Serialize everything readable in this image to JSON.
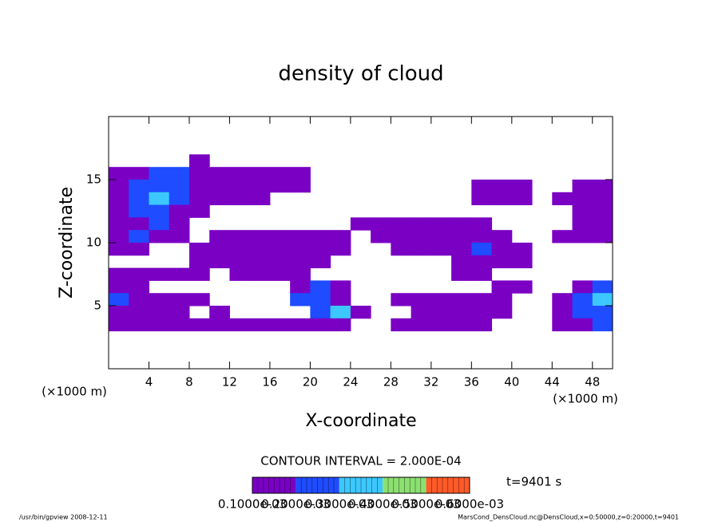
{
  "chart_data": {
    "type": "contour",
    "title": "density of cloud",
    "x_label": "X-coordinate",
    "y_label": "Z-coordinate",
    "x_unit": "(×1000 m)",
    "y_unit": "(×1000 m)",
    "contour_interval": "CONTOUR INTERVAL = 2.000E-04",
    "time_label": "t=9401 s",
    "footer_left": "/usr/bin/gpview  2008-12-11",
    "footer_right": "MarsCond_DensCloud.nc@DensCloud,x=0:50000,z=0:20000,t=9401",
    "xlim": [
      0,
      50
    ],
    "ylim": [
      0,
      20
    ],
    "xticks": [
      4,
      8,
      12,
      16,
      20,
      24,
      28,
      32,
      36,
      40,
      44,
      48
    ],
    "yticks": [
      5,
      10,
      15
    ],
    "levels": [
      {
        "value": 0.0001,
        "label": "0.1000e-03"
      },
      {
        "value": 0.0002,
        "label": "0.2000e-03"
      },
      {
        "value": 0.0003,
        "label": "0.3000e-03"
      },
      {
        "value": 0.0004,
        "label": "0.4000e-03"
      },
      {
        "value": 0.0005,
        "label": "0.5000e-03"
      },
      {
        "value": 0.0006,
        "label": "0.6000e-03"
      }
    ],
    "level_colors": [
      "#7a00c4",
      "#1f4cff",
      "#3cc8ff",
      "#8ce070",
      "#ff5a28"
    ],
    "x": [
      1,
      3,
      5,
      7,
      9,
      11,
      13,
      15,
      17,
      19,
      21,
      23,
      25,
      27,
      29,
      31,
      33,
      35,
      37,
      39,
      41,
      43,
      45,
      47,
      49
    ],
    "y": [
      16.5,
      15.5,
      14.5,
      13.5,
      12.5,
      11.5,
      10.5,
      9.5,
      8.5,
      7.5,
      6.5,
      5.5,
      4.5,
      3.5
    ],
    "z": [
      [
        null,
        null,
        null,
        null,
        0.0001,
        null,
        null,
        null,
        null,
        null,
        null,
        null,
        null,
        null,
        null,
        null,
        null,
        null,
        null,
        null,
        null,
        null,
        null,
        null,
        null
      ],
      [
        0.0001,
        0.0001,
        0.0002,
        0.0002,
        0.0001,
        0.0001,
        0.0001,
        0.0001,
        0.0001,
        0.0001,
        null,
        null,
        null,
        null,
        null,
        null,
        null,
        null,
        null,
        null,
        null,
        null,
        null,
        null,
        null
      ],
      [
        0.0001,
        0.0002,
        0.0002,
        0.0002,
        0.0001,
        0.0001,
        0.0001,
        0.0001,
        0.0001,
        0.0001,
        null,
        null,
        null,
        null,
        null,
        null,
        null,
        null,
        0.0001,
        0.0001,
        0.0001,
        null,
        null,
        0.0001,
        0.0001
      ],
      [
        0.0001,
        0.0002,
        0.0003,
        0.0002,
        0.0001,
        0.0001,
        0.0001,
        0.0001,
        null,
        null,
        null,
        null,
        null,
        null,
        null,
        null,
        null,
        null,
        0.0001,
        0.0001,
        0.0001,
        null,
        0.0001,
        0.0001,
        0.0001
      ],
      [
        0.0001,
        0.0002,
        0.0002,
        0.0001,
        0.0001,
        null,
        null,
        null,
        null,
        null,
        null,
        null,
        null,
        null,
        null,
        null,
        null,
        null,
        null,
        null,
        null,
        null,
        null,
        0.0001,
        0.0001
      ],
      [
        0.0001,
        0.0001,
        0.0002,
        0.0001,
        null,
        null,
        null,
        null,
        null,
        null,
        null,
        null,
        0.0001,
        0.0001,
        0.0001,
        0.0001,
        0.0001,
        0.0001,
        0.0001,
        null,
        null,
        null,
        null,
        0.0001,
        0.0001
      ],
      [
        0.0001,
        0.0002,
        0.0001,
        0.0001,
        null,
        0.0001,
        0.0001,
        0.0001,
        0.0001,
        0.0001,
        0.0001,
        0.0001,
        null,
        0.0001,
        0.0001,
        0.0001,
        0.0001,
        0.0001,
        0.0001,
        0.0001,
        null,
        null,
        0.0001,
        0.0001,
        0.0001
      ],
      [
        0.0001,
        0.0001,
        null,
        null,
        0.0001,
        0.0001,
        0.0001,
        0.0001,
        0.0001,
        0.0001,
        0.0001,
        0.0001,
        null,
        null,
        0.0001,
        0.0001,
        0.0001,
        0.0001,
        0.0002,
        0.0001,
        0.0001,
        null,
        null,
        null,
        null
      ],
      [
        null,
        null,
        null,
        null,
        0.0001,
        0.0001,
        0.0001,
        0.0001,
        0.0001,
        0.0001,
        0.0001,
        null,
        null,
        null,
        null,
        null,
        null,
        0.0001,
        0.0001,
        0.0001,
        0.0001,
        null,
        null,
        null,
        null
      ],
      [
        0.0001,
        0.0001,
        0.0001,
        0.0001,
        0.0001,
        null,
        0.0001,
        0.0001,
        0.0001,
        0.0001,
        null,
        null,
        null,
        null,
        null,
        null,
        null,
        0.0001,
        0.0001,
        null,
        null,
        null,
        null,
        null,
        null
      ],
      [
        0.0001,
        0.0001,
        null,
        null,
        null,
        null,
        null,
        null,
        null,
        0.0001,
        0.0002,
        0.0001,
        null,
        null,
        null,
        null,
        null,
        null,
        null,
        0.0001,
        0.0001,
        null,
        null,
        0.0001,
        0.0002
      ],
      [
        0.0002,
        0.0001,
        0.0001,
        0.0001,
        0.0001,
        null,
        null,
        null,
        null,
        0.0002,
        0.0002,
        0.0001,
        null,
        null,
        0.0001,
        0.0001,
        0.0001,
        0.0001,
        0.0001,
        0.0001,
        null,
        null,
        0.0001,
        0.0002,
        0.0003
      ],
      [
        0.0001,
        0.0001,
        0.0001,
        0.0001,
        null,
        0.0001,
        null,
        null,
        null,
        null,
        0.0002,
        0.0003,
        0.0001,
        null,
        null,
        0.0001,
        0.0001,
        0.0001,
        0.0001,
        0.0001,
        null,
        null,
        0.0001,
        0.0002,
        0.0002
      ],
      [
        0.0001,
        0.0001,
        0.0001,
        0.0001,
        0.0001,
        0.0001,
        0.0001,
        0.0001,
        0.0001,
        0.0001,
        0.0001,
        0.0001,
        null,
        null,
        0.0001,
        0.0001,
        0.0001,
        0.0001,
        0.0001,
        null,
        null,
        null,
        0.0001,
        0.0001,
        0.0002
      ]
    ]
  }
}
